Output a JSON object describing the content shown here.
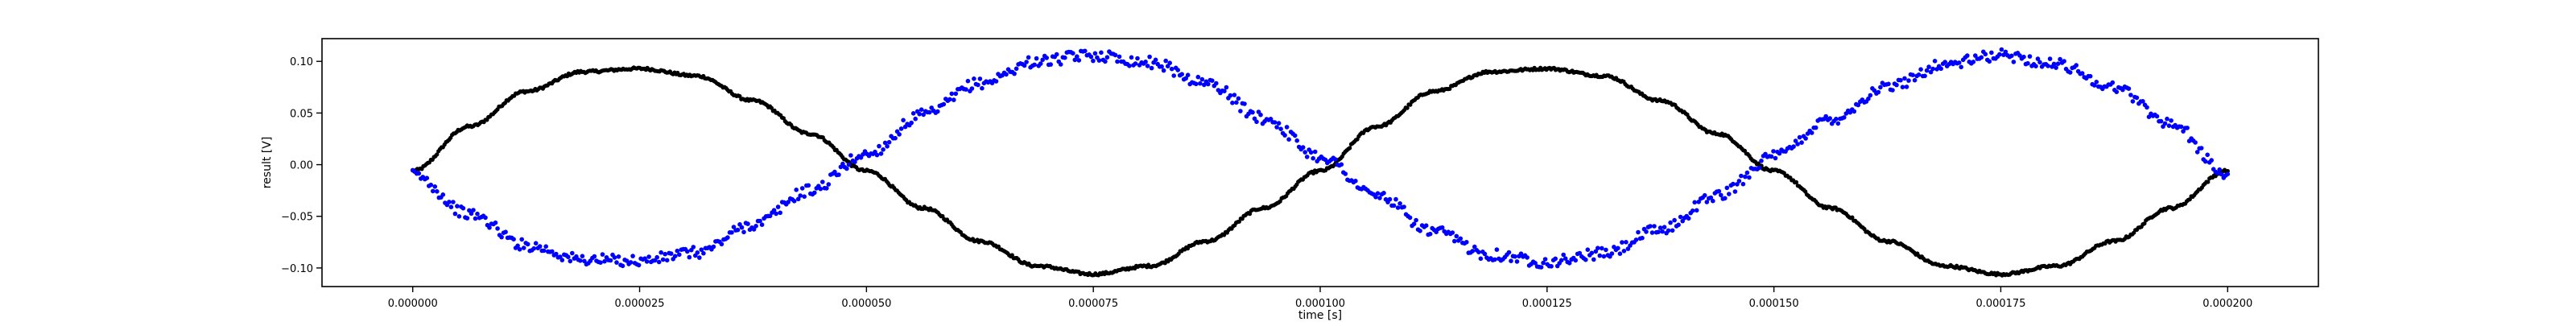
{
  "chart_data": {
    "type": "scatter",
    "title": "",
    "xlabel": "time [s]",
    "ylabel": "result [V]",
    "xlim": [
      -1e-05,
      0.00021
    ],
    "ylim": [
      -0.118,
      0.122
    ],
    "xticks": [
      0.0,
      2.5e-05,
      5e-05,
      7.5e-05,
      0.0001,
      0.000125,
      0.00015,
      0.000175,
      0.0002
    ],
    "xtick_labels": [
      "0.000000",
      "0.000025",
      "0.000050",
      "0.000075",
      "0.000100",
      "0.000125",
      "0.000150",
      "0.000175",
      "0.000200"
    ],
    "yticks": [
      -0.1,
      -0.05,
      0.0,
      0.05,
      0.1
    ],
    "ytick_labels": [
      "−0.10",
      "−0.05",
      "0.00",
      "0.05",
      "0.10"
    ],
    "grid": false,
    "legend": false,
    "series": [
      {
        "color": "#000000",
        "marker": "dot",
        "x": [
          0.0,
          6.25e-06,
          1.25e-05,
          1.875e-05,
          2.5e-05,
          3.125e-05,
          3.75e-05,
          4.375e-05,
          5e-05,
          5.625e-05,
          6.25e-05,
          6.875e-05,
          7.5e-05,
          8.125e-05,
          8.75e-05,
          9.375e-05,
          0.0001,
          0.00010625,
          0.0001125,
          0.00011875,
          0.000125,
          0.00013125,
          0.0001375,
          0.00014375,
          0.00015,
          0.00015625,
          0.0001625,
          0.00016875,
          0.000175,
          0.00018125,
          0.0001875,
          0.00019375,
          0.0002
        ],
        "y": [
          -0.006,
          0.037,
          0.071,
          0.09,
          0.093,
          0.086,
          0.062,
          0.03,
          -0.006,
          -0.042,
          -0.074,
          -0.098,
          -0.106,
          -0.098,
          -0.074,
          -0.042,
          -0.006,
          0.037,
          0.071,
          0.09,
          0.093,
          0.086,
          0.062,
          0.03,
          -0.006,
          -0.042,
          -0.074,
          -0.098,
          -0.106,
          -0.098,
          -0.074,
          -0.042,
          -0.006
        ]
      },
      {
        "color": "#0000ff",
        "marker": "dot",
        "x": [
          0.0,
          6.25e-06,
          1.25e-05,
          1.875e-05,
          2.5e-05,
          3.125e-05,
          3.75e-05,
          4.375e-05,
          5e-05,
          5.625e-05,
          6.25e-05,
          6.875e-05,
          7.5e-05,
          8.125e-05,
          8.75e-05,
          9.375e-05,
          0.0001,
          0.00010625,
          0.0001125,
          0.00011875,
          0.000125,
          0.00013125,
          0.0001375,
          0.00014375,
          0.00015,
          0.00015625,
          0.0001625,
          0.00016875,
          0.000175,
          0.00018125,
          0.0001875,
          0.00019375,
          0.0002
        ],
        "y": [
          -0.01,
          -0.048,
          -0.078,
          -0.092,
          -0.093,
          -0.085,
          -0.058,
          -0.025,
          0.01,
          0.048,
          0.079,
          0.1,
          0.106,
          0.099,
          0.079,
          0.045,
          0.008,
          -0.03,
          -0.065,
          -0.087,
          -0.094,
          -0.086,
          -0.063,
          -0.03,
          0.008,
          0.044,
          0.075,
          0.097,
          0.106,
          0.097,
          0.075,
          0.04,
          -0.01
        ]
      }
    ]
  }
}
